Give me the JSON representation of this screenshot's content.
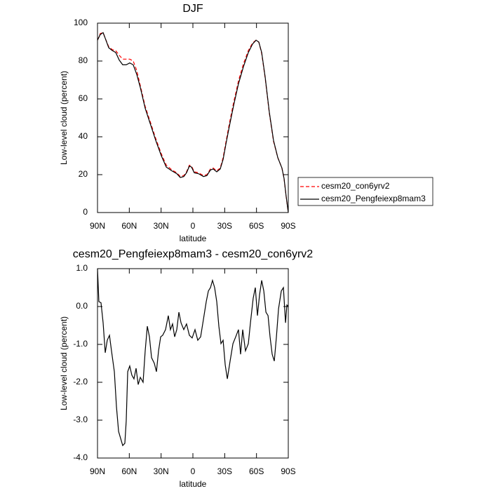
{
  "chart_data": [
    {
      "type": "line",
      "title": "DJF",
      "xlabel": "latitude",
      "ylabel": "Low-level cloud (percent)",
      "x": [
        90,
        87.4,
        84.7,
        82.7,
        79.4,
        76,
        72.8,
        69.5,
        66.2,
        62.9,
        59.6,
        56.3,
        53,
        49.6,
        45,
        39.7,
        35,
        29.8,
        25.1,
        19.8,
        15.2,
        11.9,
        8.6,
        6,
        3.3,
        1.3,
        -1.3,
        -5.3,
        -10,
        -13.2,
        -16.6,
        -19.2,
        -22.5,
        -25.8,
        -28.5,
        -31.1,
        -34.4,
        -38.4,
        -43,
        -47.7,
        -52.3,
        -56.3,
        -59.6,
        -62.2,
        -64.9,
        -68.2,
        -72.1,
        -76.1,
        -80.1,
        -84,
        -86,
        -88,
        -90
      ],
      "series": [
        {
          "name": "cesm20_con6yrv2",
          "color": "#ff0000",
          "linestyle": "dashed",
          "values": [
            91,
            94.5,
            95,
            92,
            87.5,
            86,
            85.5,
            83,
            81,
            81,
            81,
            80,
            75,
            67,
            56,
            47,
            39,
            31,
            25,
            22.5,
            21,
            19,
            19.5,
            21.5,
            25,
            24.5,
            21.5,
            21,
            19.5,
            20,
            23,
            23.5,
            22,
            23.5,
            29,
            37,
            47,
            58,
            69.5,
            78.5,
            85.5,
            89.5,
            91,
            90,
            84,
            71,
            52.5,
            37.5,
            29,
            23.5,
            18,
            8.5,
            0
          ]
        },
        {
          "name": "cesm20_Pengfeiexp8mam3",
          "color": "#000000",
          "linestyle": "solid",
          "values": [
            91,
            94,
            95,
            92,
            87,
            85.5,
            84.5,
            80.5,
            78,
            78,
            79,
            78,
            73,
            66,
            55,
            46,
            38,
            30,
            24,
            22,
            20.5,
            18.5,
            19,
            21,
            24.5,
            24,
            21,
            20.5,
            19,
            19.5,
            22.5,
            23,
            21.5,
            23,
            28,
            36,
            45.5,
            56.5,
            68,
            77,
            84.5,
            89,
            91,
            90,
            84.5,
            71.5,
            53,
            38,
            29,
            23.5,
            18,
            8.5,
            0
          ]
        }
      ],
      "xlim": [
        90,
        -90
      ],
      "ylim": [
        0,
        100
      ],
      "xticks": [
        {
          "value": 90,
          "label": "90N"
        },
        {
          "value": 60,
          "label": "60N"
        },
        {
          "value": 30,
          "label": "30N"
        },
        0,
        {
          "value": -30,
          "label": "30S"
        },
        {
          "value": -60,
          "label": "60S"
        },
        {
          "value": -90,
          "label": "90S"
        }
      ],
      "yticks": [
        0,
        20,
        40,
        60,
        80,
        100
      ],
      "legend": "right"
    },
    {
      "type": "line",
      "title": "cesm20_Pengfeiexp8mam3 - cesm20_con6yrv2",
      "xlabel": "latitude",
      "ylabel": "Low-level cloud (percent)",
      "x": [
        90,
        88.7,
        86.7,
        84.7,
        82.7,
        80.8,
        78.7,
        76.8,
        74.1,
        72.1,
        70.1,
        68.2,
        66.2,
        64.2,
        62.9,
        61.5,
        59.6,
        57.6,
        55.6,
        53.6,
        51.6,
        49.6,
        47,
        45,
        43,
        41,
        39,
        36.4,
        34.4,
        32.4,
        30.4,
        28.5,
        25.8,
        23.2,
        21.2,
        19.2,
        17.2,
        15.2,
        13.2,
        11.2,
        8.6,
        6,
        3.3,
        0.7,
        -2,
        -4.6,
        -7.3,
        -10,
        -12.6,
        -14.6,
        -16.6,
        -18.5,
        -20.5,
        -22.5,
        -24.5,
        -26.5,
        -28.5,
        -30.5,
        -32.5,
        -35.1,
        -37.8,
        -40.4,
        -43,
        -45,
        -47,
        -49.6,
        -52.3,
        -54.3,
        -56.9,
        -58.9,
        -60.9,
        -62.9,
        -64.9,
        -66.9,
        -68.9,
        -70.9,
        -72.8,
        -74.8,
        -76.8,
        -78.8,
        -80.8,
        -83.4,
        -85.4,
        -87.4,
        -88.7,
        -90
      ],
      "values": [
        1,
        0.13,
        0.1,
        -0.43,
        -1.22,
        -0.89,
        -0.76,
        -1.17,
        -1.72,
        -2.65,
        -3.3,
        -3.48,
        -3.67,
        -3.61,
        -3.02,
        -1.72,
        -1.57,
        -1.81,
        -1.91,
        -1.63,
        -2.06,
        -1.87,
        -2,
        -1.17,
        -0.52,
        -0.8,
        -1.35,
        -1.5,
        -1.72,
        -1.17,
        -0.8,
        -0.76,
        -0.61,
        -0.24,
        -0.61,
        -0.46,
        -0.8,
        -0.61,
        -0.15,
        -0.43,
        -0.61,
        -0.46,
        -0.76,
        -0.83,
        -0.61,
        -0.89,
        -0.8,
        -0.33,
        0.13,
        0.41,
        0.5,
        0.69,
        0.5,
        0.13,
        -0.52,
        -0.98,
        -0.89,
        -1.54,
        -1.91,
        -1.44,
        -0.98,
        -0.8,
        -0.61,
        -1.26,
        -0.61,
        -1.17,
        -0.98,
        -0.43,
        0.22,
        0.5,
        -0.24,
        0.31,
        0.69,
        0.41,
        -0.15,
        -0.24,
        -0.8,
        -1.26,
        -1.44,
        -0.8,
        -0.06,
        0.41,
        0.5,
        -0.43,
        0.04,
        0
      ],
      "color": "#000000",
      "xlim": [
        90,
        -90
      ],
      "ylim": [
        -4,
        1
      ],
      "xticks": [
        {
          "value": 90,
          "label": "90N"
        },
        {
          "value": 60,
          "label": "60N"
        },
        {
          "value": 30,
          "label": "30N"
        },
        0,
        {
          "value": -30,
          "label": "30S"
        },
        {
          "value": -60,
          "label": "60S"
        },
        {
          "value": -90,
          "label": "90S"
        }
      ],
      "yticks": [
        {
          "value": -4,
          "label": "-4.0"
        },
        {
          "value": -3,
          "label": "-3.0"
        },
        {
          "value": -2,
          "label": "-2.0"
        },
        {
          "value": -1,
          "label": "-1.0"
        },
        {
          "value": 0,
          "label": "0.0"
        },
        {
          "value": 1,
          "label": "1.0"
        }
      ]
    }
  ]
}
